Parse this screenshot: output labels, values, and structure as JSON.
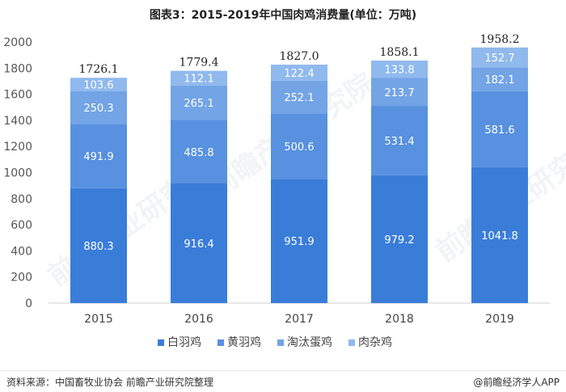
{
  "chart_data": {
    "type": "stacked-bar",
    "title": "图表3：2015-2019年中国肉鸡消费量(单位：万吨)",
    "categories": [
      "2015",
      "2016",
      "2017",
      "2018",
      "2019"
    ],
    "totals": [
      "1726.1",
      "1779.4",
      "1827.0",
      "1858.1",
      "1958.2"
    ],
    "ylim": [
      0,
      2000
    ],
    "yticks": [
      0,
      200,
      400,
      600,
      800,
      1000,
      1200,
      1400,
      1600,
      1800,
      2000
    ],
    "legend_position": "bottom",
    "series": [
      {
        "name": "白羽鸡",
        "color": "#3a7dd9",
        "values": [
          880.3,
          916.4,
          951.9,
          979.2,
          1041.8
        ],
        "labels": [
          "880.3",
          "916.4",
          "951.9",
          "979.2",
          "1041.8"
        ]
      },
      {
        "name": "黄羽鸡",
        "color": "#5791df",
        "values": [
          491.9,
          485.8,
          500.6,
          531.4,
          581.6
        ],
        "labels": [
          "491.9",
          "485.8",
          "500.6",
          "531.4",
          "581.6"
        ]
      },
      {
        "name": "淘汰蛋鸡",
        "color": "#72a4e6",
        "values": [
          250.3,
          265.1,
          252.1,
          213.7,
          182.1
        ],
        "labels": [
          "250.3",
          "265.1",
          "252.1",
          "213.7",
          "182.1"
        ]
      },
      {
        "name": "肉杂鸡",
        "color": "#90b9ed",
        "values": [
          103.6,
          112.1,
          122.4,
          133.8,
          152.7
        ],
        "labels": [
          "103.6",
          "112.1",
          "122.4",
          "133.8",
          "152.7"
        ]
      }
    ]
  },
  "footer": {
    "source": "资料来源：中国畜牧业协会 前瞻产业研究院整理",
    "credit": "@前瞻经济学人APP"
  }
}
